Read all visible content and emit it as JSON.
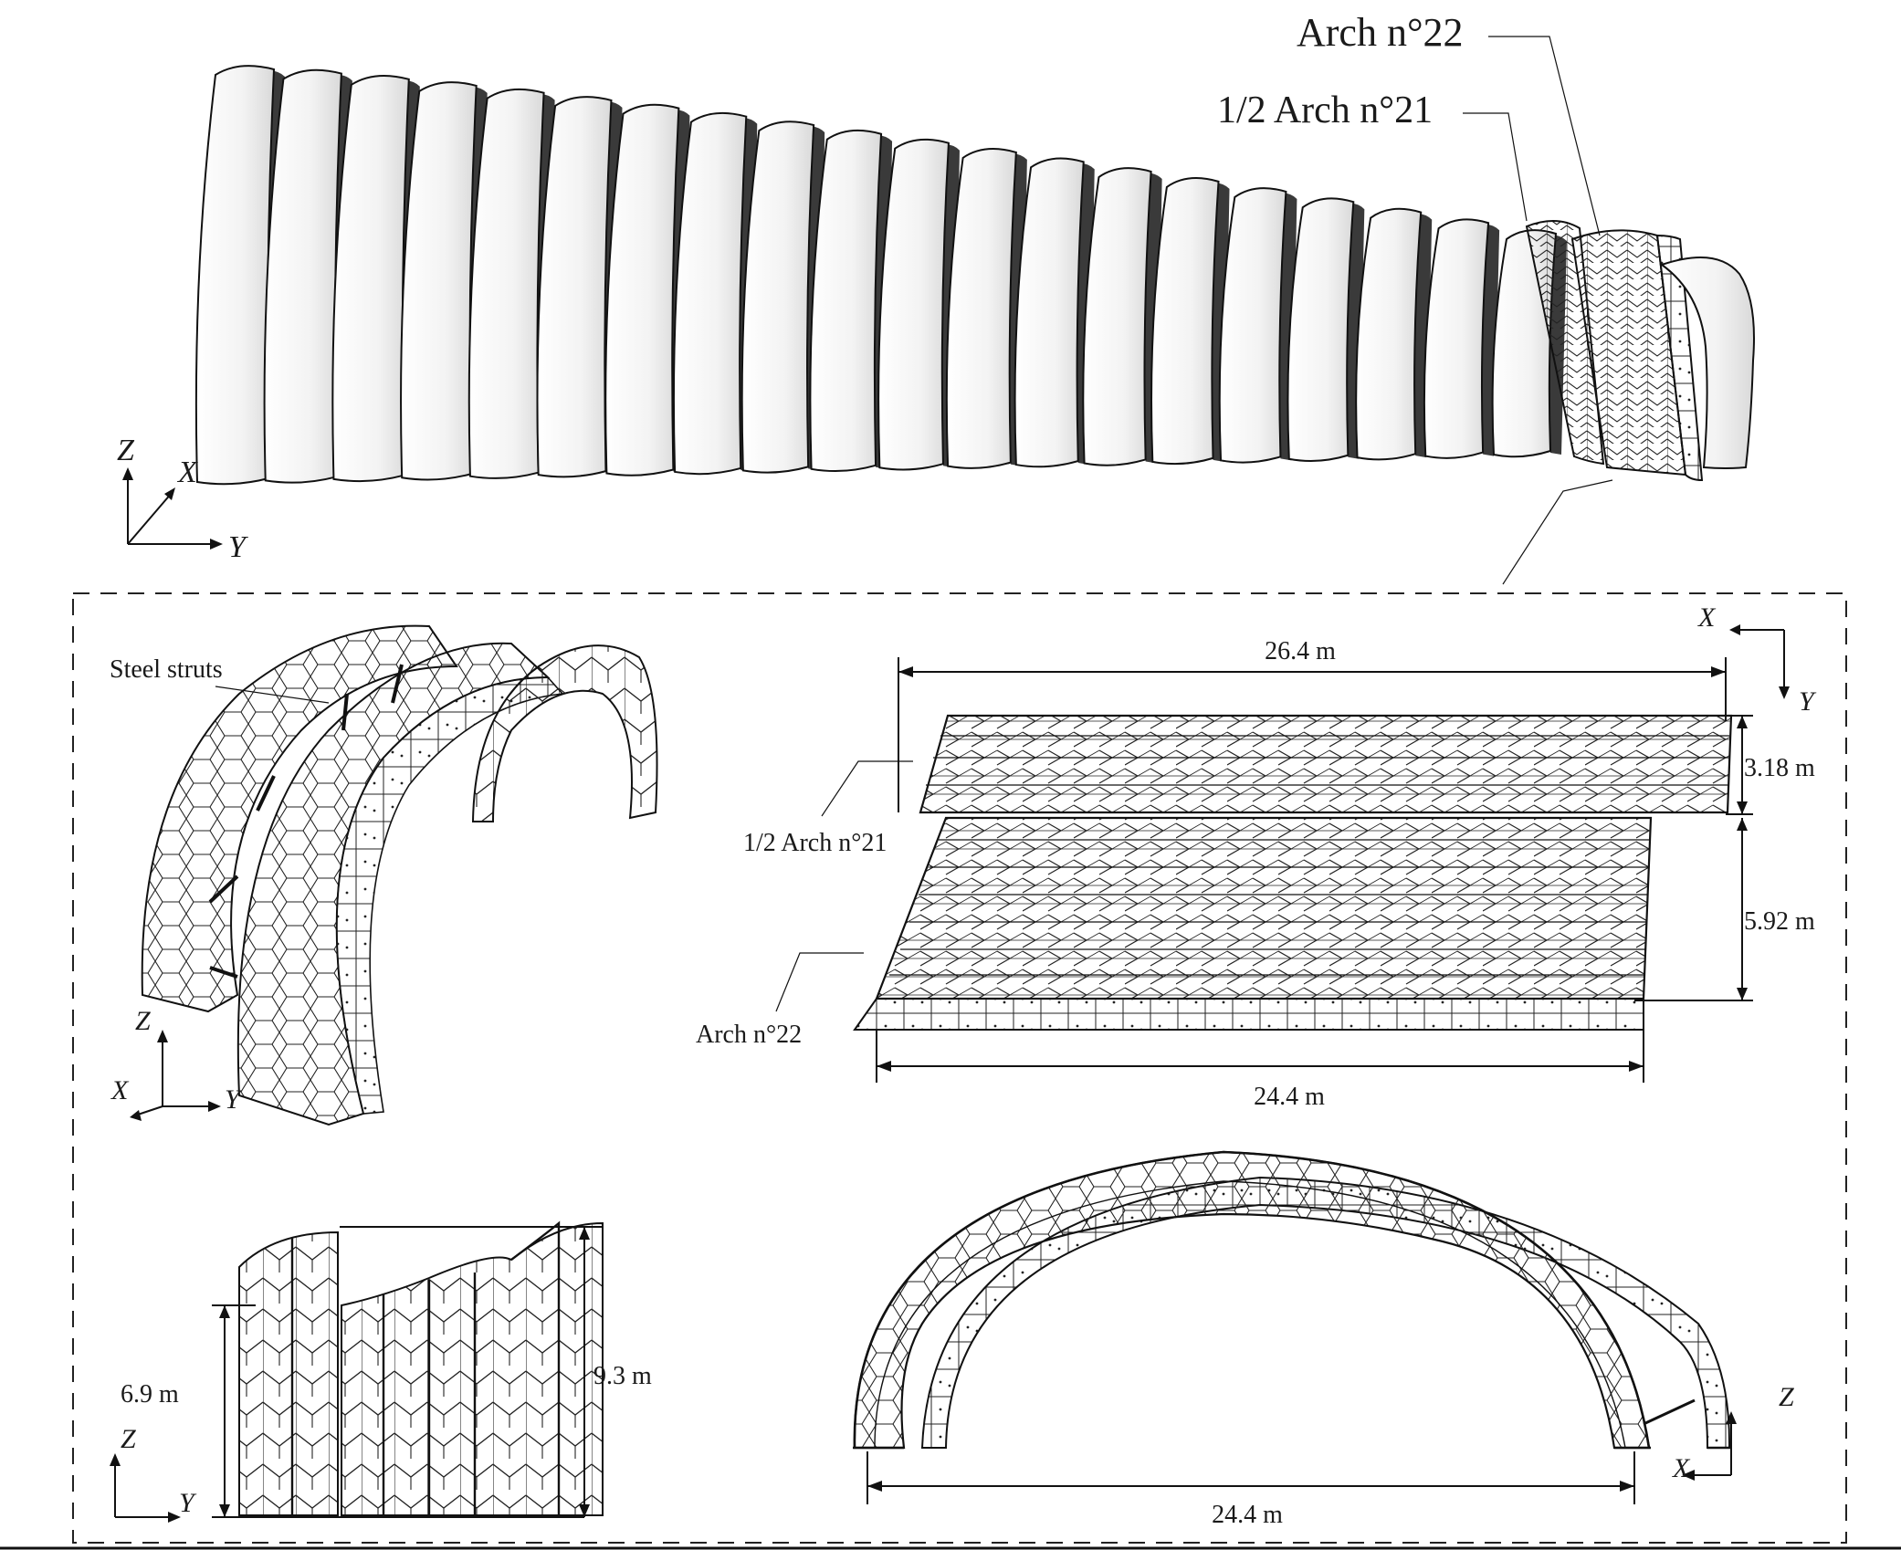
{
  "callouts": {
    "arch22": "Arch n°22",
    "half_arch21": "1/2 Arch n°21",
    "steel_struts": "Steel struts"
  },
  "dimensions": {
    "plan_top_width": "26.4 m",
    "plan_half_arch_depth": "3.18 m",
    "plan_arch_depth": "5.92 m",
    "plan_bottom_width": "24.4 m",
    "side_low_height": "6.9 m",
    "side_high_height": "9.3 m",
    "front_span": "24.4 m"
  },
  "axes": {
    "top_view": [
      "Z",
      "X",
      "Y"
    ],
    "iso_view": [
      "Z",
      "X",
      "Y"
    ],
    "plan_view": [
      "X",
      "Y"
    ],
    "side_view": [
      "Z",
      "Y"
    ],
    "front_view": [
      "Z",
      "X"
    ]
  },
  "colors": {
    "line": "#111111",
    "arch_fill": "#f6f6f6",
    "shadow": "#3a3a3a"
  },
  "arch_count": 22
}
